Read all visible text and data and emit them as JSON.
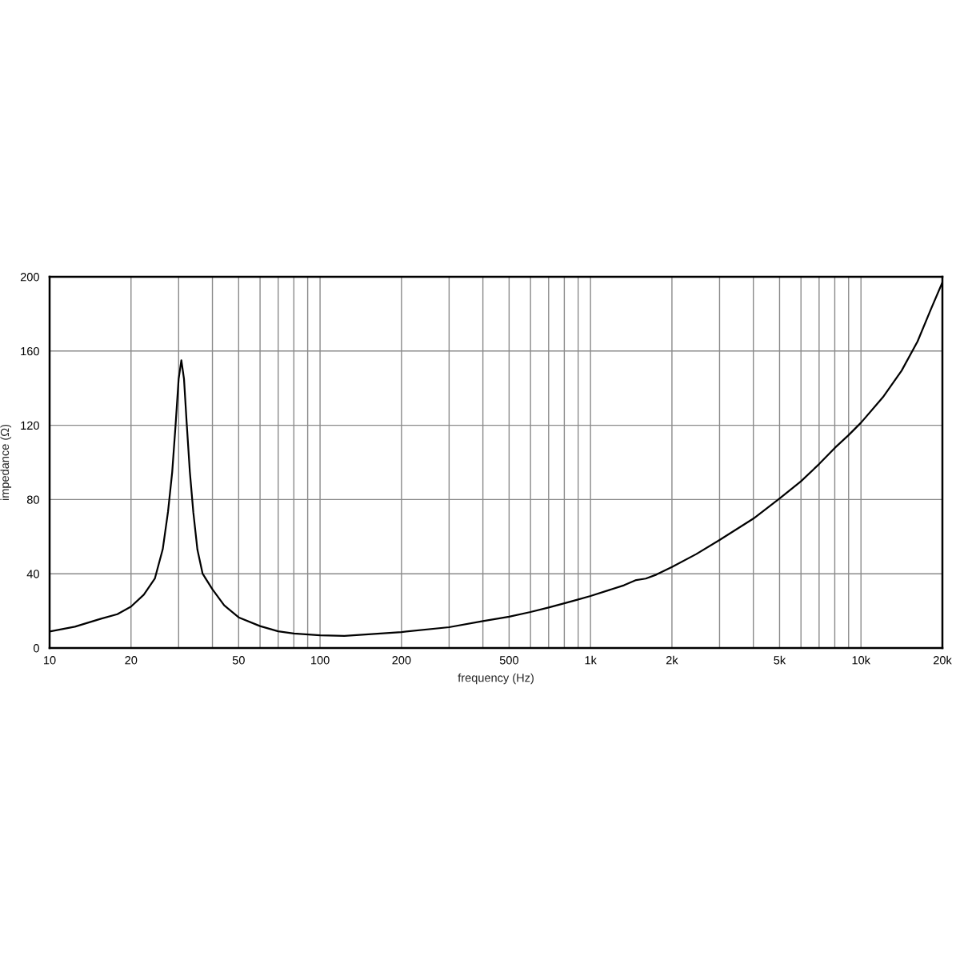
{
  "chart_data": {
    "type": "line",
    "xlabel": "frequency (Hz)",
    "ylabel": "impedance (Ω)",
    "x": [
      10,
      12.4,
      15.5,
      17.8,
      20,
      22.3,
      24.5,
      26.2,
      27.4,
      28.4,
      29.2,
      30,
      30.7,
      31.4,
      32.1,
      33,
      34,
      35.2,
      36.8,
      40,
      44.2,
      50,
      60,
      70,
      80,
      100,
      115,
      123,
      200,
      300,
      400,
      500,
      600,
      700,
      800,
      900,
      1000,
      1330,
      1475,
      1600,
      1750,
      2000,
      2460,
      3000,
      4000,
      5000,
      6000,
      7000,
      8000,
      9000,
      10000,
      12050,
      14130,
      16190,
      18130,
      20000
    ],
    "values": [
      8.9,
      11.5,
      15.8,
      18.2,
      22.3,
      28.7,
      37.4,
      53.2,
      73.3,
      94.8,
      119.3,
      145,
      155,
      145,
      122,
      95,
      73,
      53,
      40,
      31.6,
      23,
      16.5,
      11.8,
      9,
      7.8,
      6.8,
      6.6,
      6.5,
      8.6,
      11.2,
      14.5,
      16.9,
      19.4,
      21.8,
      24.1,
      26.1,
      28,
      33.8,
      36.6,
      37.4,
      39.5,
      43.6,
      50.6,
      58.2,
      69.7,
      80.5,
      89.8,
      99.1,
      107.8,
      114.7,
      121.4,
      135.1,
      149.4,
      165.2,
      182.5,
      197
    ],
    "color": "#000000",
    "line_style": "solid",
    "log": "x",
    "xlim": [
      10,
      20000
    ],
    "ylim": [
      0,
      200
    ],
    "xticks": [
      10,
      20,
      {
        "value": 30,
        "label": null
      },
      {
        "value": 40,
        "label": null
      },
      50,
      {
        "value": 60,
        "label": null
      },
      {
        "value": 70,
        "label": null
      },
      {
        "value": 80,
        "label": null
      },
      {
        "value": 90,
        "label": null
      },
      100,
      200,
      {
        "value": 300,
        "label": null
      },
      {
        "value": 400,
        "label": null
      },
      500,
      {
        "value": 600,
        "label": null
      },
      {
        "value": 700,
        "label": null
      },
      {
        "value": 800,
        "label": null
      },
      {
        "value": 900,
        "label": null
      },
      {
        "value": 1000,
        "label": "1k"
      },
      {
        "value": 2000,
        "label": "2k"
      },
      {
        "value": 3000,
        "label": null
      },
      {
        "value": 4000,
        "label": null
      },
      {
        "value": 5000,
        "label": "5k"
      },
      {
        "value": 6000,
        "label": null
      },
      {
        "value": 7000,
        "label": null
      },
      {
        "value": 8000,
        "label": null
      },
      {
        "value": 9000,
        "label": null
      },
      {
        "value": 10000,
        "label": "10k"
      },
      {
        "value": 20000,
        "label": "20k"
      }
    ],
    "yticks": [
      0,
      40,
      80,
      120,
      160,
      200
    ],
    "grid": true
  }
}
